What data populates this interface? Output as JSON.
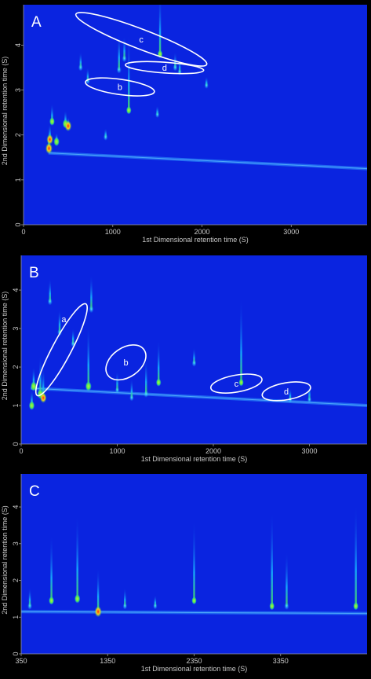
{
  "chart_data": [
    {
      "type": "heatmap",
      "panel_label": "A",
      "xlabel": "1st Dimensional retention time (S)",
      "ylabel": "2nd Dimensional retention time (S)",
      "xlim": [
        0,
        3850
      ],
      "ylim": [
        0,
        4.9
      ],
      "x_ticks": [
        0,
        1000,
        2000,
        3000
      ],
      "y_ticks": [
        0,
        1,
        2,
        3,
        4
      ],
      "colors": {
        "background": "#0a24e0",
        "low": "#18b8ff",
        "mid": "#49e65a",
        "high": "#ff2a10"
      },
      "baseline": {
        "x_start": 280,
        "y_start": 1.6,
        "x_end": 3850,
        "y_end": 1.25
      },
      "peaks": [
        {
          "x": 285,
          "y": 1.7,
          "h": 1.0,
          "len": 0.4
        },
        {
          "x": 295,
          "y": 1.9,
          "h": 0.9,
          "len": 0.35
        },
        {
          "x": 320,
          "y": 2.3,
          "h": 0.6,
          "len": 0.4
        },
        {
          "x": 370,
          "y": 1.85,
          "h": 0.7,
          "len": 0.2
        },
        {
          "x": 470,
          "y": 2.25,
          "h": 0.7,
          "len": 0.3
        },
        {
          "x": 500,
          "y": 2.2,
          "h": 0.95,
          "len": 0.2
        },
        {
          "x": 640,
          "y": 3.5,
          "h": 0.4,
          "len": 0.35
        },
        {
          "x": 720,
          "y": 3.2,
          "h": 0.35,
          "len": 0.3
        },
        {
          "x": 1070,
          "y": 3.45,
          "h": 0.45,
          "len": 0.8
        },
        {
          "x": 1130,
          "y": 3.7,
          "h": 0.4,
          "len": 0.5
        },
        {
          "x": 1180,
          "y": 2.55,
          "h": 0.55,
          "len": 1.7
        },
        {
          "x": 1530,
          "y": 3.8,
          "h": 0.55,
          "len": 1.4
        },
        {
          "x": 1700,
          "y": 3.5,
          "h": 0.4,
          "len": 0.35
        },
        {
          "x": 1750,
          "y": 3.4,
          "h": 0.3,
          "len": 0.3
        },
        {
          "x": 2050,
          "y": 3.1,
          "h": 0.3,
          "len": 0.2
        },
        {
          "x": 920,
          "y": 1.95,
          "h": 0.35,
          "len": 0.2
        },
        {
          "x": 1500,
          "y": 2.45,
          "h": 0.3,
          "len": 0.2
        }
      ],
      "ellipses": [
        {
          "label": "c",
          "cx": 1320,
          "cy": 4.13,
          "rx": 785,
          "ry": 0.22,
          "rot": 21
        },
        {
          "label": "d",
          "cx": 1580,
          "cy": 3.5,
          "rx": 440,
          "ry": 0.12,
          "rot": 4
        },
        {
          "label": "b",
          "cx": 1080,
          "cy": 3.07,
          "rx": 390,
          "ry": 0.17,
          "rot": 8
        }
      ]
    },
    {
      "type": "heatmap",
      "panel_label": "B",
      "xlabel": "1st Dimensional retention time (S)",
      "ylabel": "2nd Dimensional retention time (S)",
      "xlim": [
        0,
        3600
      ],
      "ylim": [
        0,
        4.9
      ],
      "x_ticks": [
        0,
        1000,
        2000,
        3000
      ],
      "y_ticks": [
        0,
        1,
        2,
        3,
        4
      ],
      "colors": {
        "background": "#0a24e0",
        "low": "#18b8ff",
        "mid": "#49e65a",
        "high": "#ff2a10"
      },
      "baseline": {
        "x_start": 100,
        "y_start": 1.45,
        "x_end": 3600,
        "y_end": 1.0
      },
      "peaks": [
        {
          "x": 110,
          "y": 1.0,
          "h": 0.7,
          "len": 0.4
        },
        {
          "x": 130,
          "y": 1.5,
          "h": 0.8,
          "len": 0.5
        },
        {
          "x": 200,
          "y": 1.3,
          "h": 0.85,
          "len": 1.0
        },
        {
          "x": 230,
          "y": 1.2,
          "h": 0.9,
          "len": 0.8
        },
        {
          "x": 300,
          "y": 3.7,
          "h": 0.45,
          "len": 0.6
        },
        {
          "x": 400,
          "y": 2.9,
          "h": 0.4,
          "len": 0.6
        },
        {
          "x": 540,
          "y": 2.6,
          "h": 0.35,
          "len": 0.4
        },
        {
          "x": 700,
          "y": 1.5,
          "h": 0.8,
          "len": 1.6
        },
        {
          "x": 730,
          "y": 3.5,
          "h": 0.45,
          "len": 0.9
        },
        {
          "x": 1000,
          "y": 1.4,
          "h": 0.3,
          "len": 0.5
        },
        {
          "x": 1150,
          "y": 1.2,
          "h": 0.35,
          "len": 0.5
        },
        {
          "x": 1300,
          "y": 1.3,
          "h": 0.45,
          "len": 0.9
        },
        {
          "x": 1430,
          "y": 1.6,
          "h": 0.55,
          "len": 1.1
        },
        {
          "x": 1800,
          "y": 2.1,
          "h": 0.4,
          "len": 0.4
        },
        {
          "x": 2290,
          "y": 1.6,
          "h": 0.5,
          "len": 2.2
        },
        {
          "x": 2800,
          "y": 1.15,
          "h": 0.3,
          "len": 0.3
        },
        {
          "x": 3000,
          "y": 1.15,
          "h": 0.3,
          "len": 0.4
        }
      ],
      "ellipses": [
        {
          "label": "a",
          "cx": 420,
          "cy": 2.45,
          "rx": 1.3,
          "ry": 150,
          "rot": 0,
          "tilt": true
        },
        {
          "label": "b",
          "cx": 1090,
          "cy": 2.12,
          "rx": 230,
          "ry": 0.38,
          "rot": -35
        },
        {
          "label": "c",
          "cx": 2240,
          "cy": 1.57,
          "rx": 270,
          "ry": 0.22,
          "rot": -10
        },
        {
          "label": "d",
          "cx": 2760,
          "cy": 1.37,
          "rx": 255,
          "ry": 0.22,
          "rot": -10
        }
      ]
    },
    {
      "type": "heatmap",
      "panel_label": "C",
      "xlabel": "1st Dimensional retention time (S)",
      "ylabel": "2nd Dimensional retention time (S)",
      "xlim": [
        350,
        4350
      ],
      "ylim": [
        0,
        4.9
      ],
      "x_ticks": [
        350,
        1350,
        2350,
        3350
      ],
      "y_ticks": [
        0,
        1,
        2,
        3,
        4
      ],
      "colors": {
        "background": "#0a24e0",
        "low": "#18b8ff",
        "mid": "#49e65a",
        "high": "#ff2a10"
      },
      "baseline": {
        "x_start": 350,
        "y_start": 1.15,
        "x_end": 4350,
        "y_end": 1.1
      },
      "peaks": [
        {
          "x": 450,
          "y": 1.3,
          "h": 0.4,
          "len": 0.5
        },
        {
          "x": 700,
          "y": 1.45,
          "h": 0.6,
          "len": 1.8
        },
        {
          "x": 1000,
          "y": 1.5,
          "h": 0.7,
          "len": 2.3
        },
        {
          "x": 1240,
          "y": 1.15,
          "h": 1.0,
          "len": 1.2
        },
        {
          "x": 1550,
          "y": 1.3,
          "h": 0.35,
          "len": 0.5
        },
        {
          "x": 1900,
          "y": 1.3,
          "h": 0.3,
          "len": 0.3
        },
        {
          "x": 2350,
          "y": 1.45,
          "h": 0.5,
          "len": 2.2
        },
        {
          "x": 3250,
          "y": 1.3,
          "h": 0.55,
          "len": 2.6
        },
        {
          "x": 3420,
          "y": 1.3,
          "h": 0.45,
          "len": 1.5
        },
        {
          "x": 4220,
          "y": 1.3,
          "h": 0.55,
          "len": 2.8
        }
      ],
      "ellipses": []
    }
  ]
}
